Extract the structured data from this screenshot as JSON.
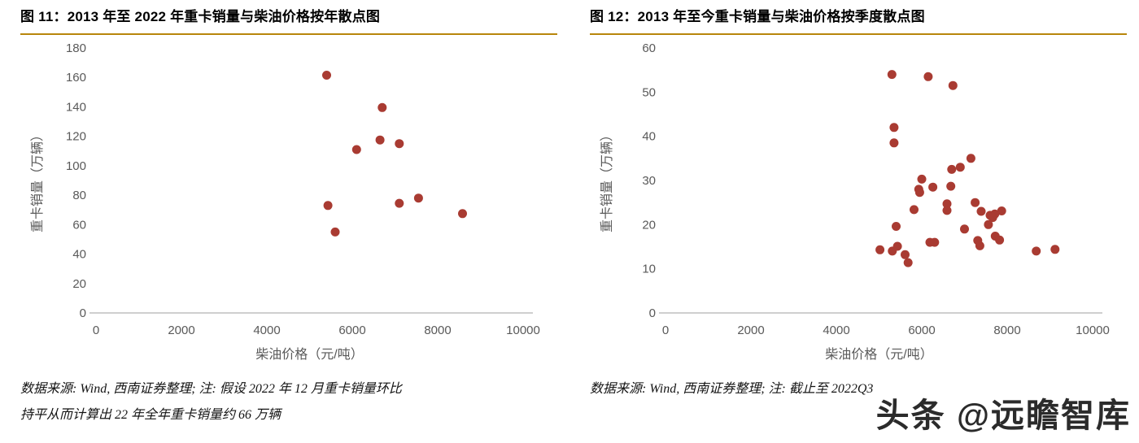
{
  "colors": {
    "dot": "#A93B32",
    "axis_line": "#BFBFBF",
    "tick_text": "#595959",
    "title_text": "#000000",
    "divider": "#B8860B"
  },
  "watermark": {
    "text": "头条 @远瞻智库"
  },
  "figures": [
    {
      "title": "图 11：2013 年至 2022 年重卡销量与柴油价格按年散点图",
      "source_line1": "数据来源: Wind, 西南证券整理; 注: 假设 2022 年 12 月重卡销量环比",
      "source_line2": "持平从而计算出 22 年全年重卡销量约 66 万辆"
    },
    {
      "title": "图 12：2013 年至今重卡销量与柴油价格按季度散点图",
      "source_line1": "数据来源: Wind, 西南证券整理; 注: 截止至 2022Q3",
      "source_line2": ""
    }
  ],
  "chart_data": [
    {
      "type": "scatter",
      "title": "图 11：2013 年至 2022 年重卡销量与柴油价格按年散点图",
      "xlabel": "柴油价格（元/吨）",
      "ylabel": "重卡销量（万辆）",
      "xlim": [
        0,
        10000
      ],
      "ylim": [
        0,
        180
      ],
      "xticks": [
        0,
        2000,
        4000,
        6000,
        8000,
        10000
      ],
      "yticks": [
        0,
        20,
        40,
        60,
        80,
        100,
        120,
        140,
        160,
        180
      ],
      "grid": false,
      "legend": false,
      "points": [
        [
          5400,
          161.5
        ],
        [
          6700,
          139.5
        ],
        [
          6650,
          117.5
        ],
        [
          7100,
          115
        ],
        [
          6100,
          111
        ],
        [
          7550,
          78
        ],
        [
          7100,
          74.5
        ],
        [
          5430,
          73
        ],
        [
          8580,
          67.5
        ],
        [
          5600,
          55
        ]
      ]
    },
    {
      "type": "scatter",
      "title": "图 12：2013 年至今重卡销量与柴油价格按季度散点图",
      "xlabel": "柴油价格（元/吨）",
      "ylabel": "重卡销量（万辆）",
      "xlim": [
        0,
        10000
      ],
      "ylim": [
        0,
        60
      ],
      "xticks": [
        0,
        2000,
        4000,
        6000,
        8000,
        10000
      ],
      "yticks": [
        0,
        10,
        20,
        30,
        40,
        50,
        60
      ],
      "grid": false,
      "legend": false,
      "points": [
        [
          5300,
          54
        ],
        [
          6150,
          53.5
        ],
        [
          6730,
          51.5
        ],
        [
          5350,
          42
        ],
        [
          5350,
          38.5
        ],
        [
          7150,
          35
        ],
        [
          6900,
          33
        ],
        [
          6700,
          32.5
        ],
        [
          6000,
          30.3
        ],
        [
          6260,
          28.5
        ],
        [
          6680,
          28.7
        ],
        [
          5930,
          28
        ],
        [
          5950,
          27.3
        ],
        [
          7250,
          25
        ],
        [
          6590,
          24.7
        ],
        [
          5820,
          23.4
        ],
        [
          7390,
          23
        ],
        [
          6590,
          23.2
        ],
        [
          7870,
          23.1
        ],
        [
          7710,
          22.4
        ],
        [
          7600,
          22.1
        ],
        [
          7660,
          21.6
        ],
        [
          7560,
          20
        ],
        [
          5400,
          19.6
        ],
        [
          7000,
          19
        ],
        [
          7720,
          17.4
        ],
        [
          7310,
          16.4
        ],
        [
          7820,
          16.5
        ],
        [
          6190,
          16
        ],
        [
          6300,
          16
        ],
        [
          7360,
          15.2
        ],
        [
          5430,
          15.1
        ],
        [
          9120,
          14.4
        ],
        [
          5020,
          14.3
        ],
        [
          5310,
          14
        ],
        [
          8680,
          14
        ],
        [
          5610,
          13.2
        ],
        [
          5680,
          11.4
        ]
      ]
    }
  ]
}
